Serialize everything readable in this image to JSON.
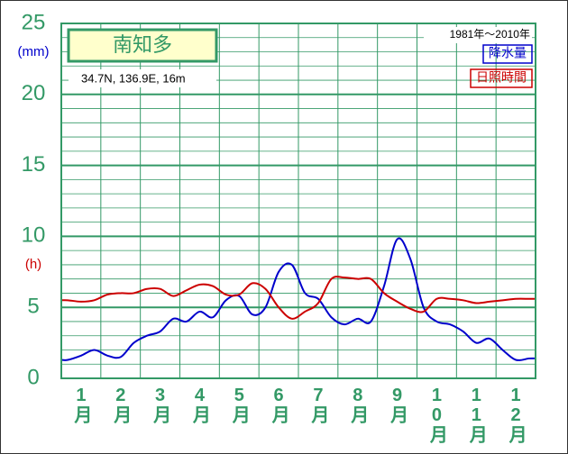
{
  "chart_data": {
    "type": "line",
    "title": "南知多",
    "subtitle": "34.7N,  136.9E,  16m",
    "period": "1981年～2010年",
    "y_label": "(mm)",
    "y2_label": "(h)",
    "categories": [
      null,
      "1月",
      null,
      null,
      "2月",
      null,
      null,
      "3月",
      null,
      null,
      "4月",
      null,
      null,
      "5月",
      null,
      null,
      "6月",
      null,
      null,
      "7月",
      null,
      null,
      "8月",
      null,
      null,
      "9月",
      null,
      null,
      "10月",
      null,
      null,
      "11月",
      null,
      null,
      "12月",
      null
    ],
    "series": [
      {
        "name": "降水量",
        "color": "#0000cc",
        "values": [
          1.3,
          1.6,
          2.0,
          1.6,
          1.5,
          2.5,
          3.0,
          3.3,
          4.2,
          4.0,
          4.7,
          4.3,
          5.5,
          5.8,
          4.5,
          5.0,
          7.5,
          8.0,
          6.0,
          5.6,
          4.3,
          3.8,
          4.2,
          4.0,
          6.5,
          9.8,
          8.4,
          5.0,
          4.0,
          3.8,
          3.3,
          2.5,
          2.8,
          2.0,
          1.3,
          1.4
        ]
      },
      {
        "name": "日照時間",
        "color": "#cc0000",
        "values": [
          5.5,
          5.4,
          5.5,
          5.9,
          6.0,
          6.0,
          6.3,
          6.3,
          5.8,
          6.2,
          6.6,
          6.5,
          5.9,
          5.9,
          6.7,
          6.3,
          5.0,
          4.2,
          4.7,
          5.3,
          7.0,
          7.1,
          7.0,
          7.0,
          6.0,
          5.4,
          4.9,
          4.7,
          5.6,
          5.6,
          5.5,
          5.3,
          5.4,
          5.5,
          5.6,
          5.6
        ]
      }
    ],
    "ylim": [
      0,
      25
    ],
    "yticks": [
      0,
      5,
      10,
      15,
      20,
      25
    ],
    "grid": true,
    "legend": "top-right"
  }
}
